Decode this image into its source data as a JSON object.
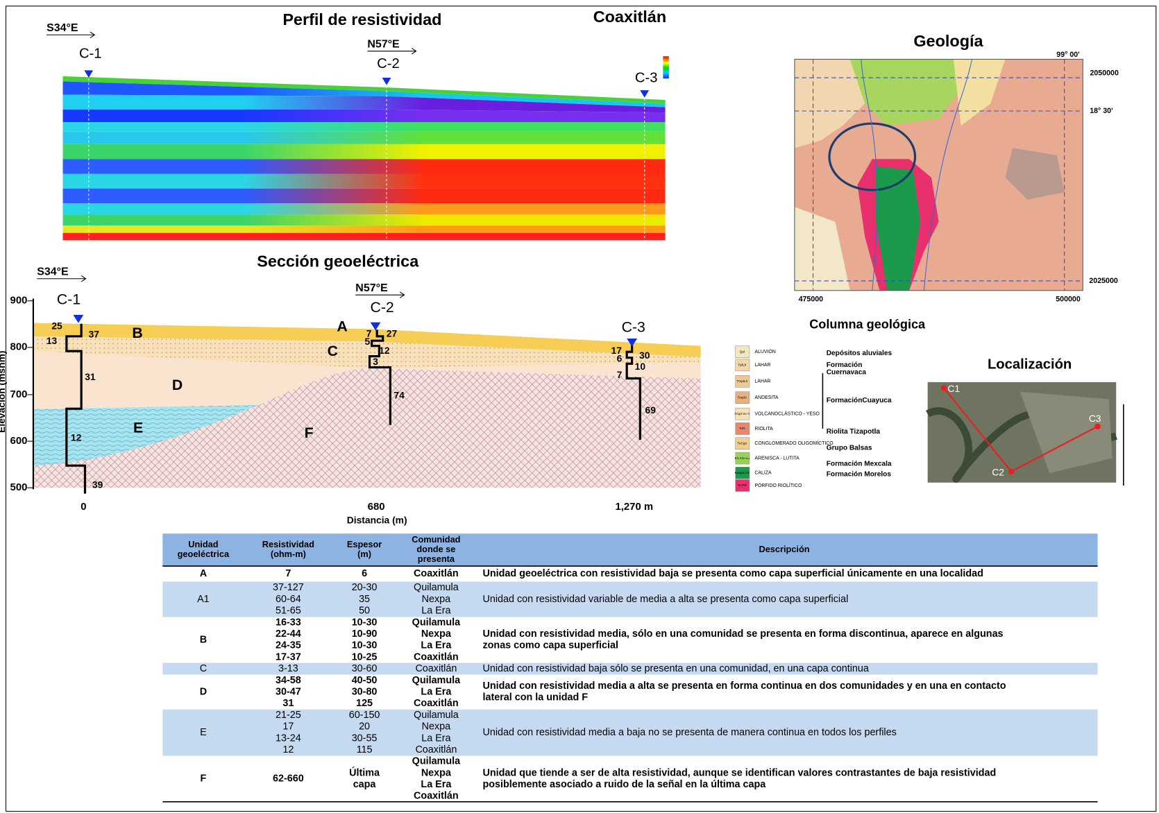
{
  "profile": {
    "title": "Perfil de resistividad",
    "place": "Coaxitlán",
    "dir1": "S34°E",
    "dir2": "N57°E",
    "stations": [
      "C-1",
      "C-2",
      "C-3"
    ]
  },
  "section": {
    "title": "Sección geoeléctrica",
    "dir1": "S34°E",
    "dir2": "N57°E",
    "stations": [
      "C-1",
      "C-2",
      "C-3"
    ],
    "y_label": "Elevación (msnm)",
    "yticks": [
      "900",
      "800",
      "700",
      "600",
      "500"
    ],
    "xticks": [
      "0",
      "680",
      "1,270 m"
    ],
    "x_label": "Distancia (m)",
    "units": [
      "A",
      "B",
      "C",
      "D",
      "E",
      "F"
    ],
    "labels": [
      "25",
      "37",
      "13",
      "31",
      "12",
      "39",
      "7",
      "27",
      "5",
      "12",
      "3",
      "74",
      "17",
      "30",
      "6",
      "10",
      "7",
      "69"
    ]
  },
  "geology": {
    "title": "Geología",
    "coords": [
      "99° 00'",
      "2050000",
      "18° 30'",
      "2025000",
      "475000",
      "500000"
    ]
  },
  "column": {
    "title": "Columna geológica",
    "rows": [
      {
        "code": "Qal",
        "name": "ALUVIÓN"
      },
      {
        "code": "TplLh",
        "name": "LAHAR"
      },
      {
        "code": "TmplLh",
        "name": "LAHAR"
      },
      {
        "code": "TmplA",
        "name": "ANDESITA"
      },
      {
        "code": "Tmpl Vc-Y",
        "name": "VOLCANOCLÁSTICO - YESO"
      },
      {
        "code": "ToR",
        "name": "RIOLITA"
      },
      {
        "code": "ToCgo",
        "name": "CONGLOMERADO OLIGOMÍCTICO"
      },
      {
        "code": "Ks Are-Lu",
        "name": "ARENISCA - LUTITA"
      },
      {
        "code": "Kaapa Cz",
        "name": "CALIZA"
      },
      {
        "code": "To PR",
        "name": "PÓRFIDO RIOLÍTICO"
      }
    ],
    "groups": [
      [
        "Depósitos aluviales"
      ],
      [
        "Formación",
        "Cuernavaca"
      ],
      [
        "FormaciónCuayuca"
      ],
      [
        "Riolita Tizapotla"
      ],
      [
        "Grupo Balsas"
      ],
      [
        "Formación Mexcala"
      ],
      [
        "Formación Morelos"
      ]
    ]
  },
  "location": {
    "title": "Localización",
    "points": [
      "C1",
      "C2",
      "C3"
    ]
  },
  "table": {
    "header": [
      [
        "Unidad",
        "geoeléctrica"
      ],
      [
        "Resistividad",
        "(ohm-m)"
      ],
      [
        "Espesor",
        "(m)"
      ],
      [
        "Comunidad",
        "donde se",
        "presenta"
      ],
      [
        "Descripción"
      ]
    ],
    "rows": [
      [
        [
          "A"
        ],
        [
          "7"
        ],
        [
          "6"
        ],
        [
          "Coaxitlán"
        ],
        [
          "Unidad geoeléctrica con resistividad baja se presenta como capa superficial únicamente en una localidad"
        ]
      ],
      [
        [
          "A1"
        ],
        [
          "37-127",
          "60-64",
          "51-65"
        ],
        [
          "20-30",
          "35",
          "50"
        ],
        [
          "Quilamula",
          "Nexpa",
          "La Era"
        ],
        [
          "Unidad con resistividad variable de media a alta se presenta como capa superficial"
        ]
      ],
      [
        [
          "B"
        ],
        [
          "16-33",
          "22-44",
          "24-35",
          "17-37"
        ],
        [
          "10-30",
          "10-90",
          "10-30",
          "10-25"
        ],
        [
          "Quilamula",
          "Nexpa",
          "La Era",
          "Coaxitlán"
        ],
        [
          "Unidad con resistividad media, sólo en una comunidad se presenta en forma discontinua, aparece en algunas",
          "zonas como capa superficial"
        ]
      ],
      [
        [
          "C"
        ],
        [
          "3-13"
        ],
        [
          "30-60"
        ],
        [
          "Coaxitlán"
        ],
        [
          "Unidad con resistividad baja sólo se presenta en una comunidad, en una capa continua"
        ]
      ],
      [
        [
          "D"
        ],
        [
          "34-58",
          "30-47",
          "31"
        ],
        [
          "40-50",
          "30-80",
          "125"
        ],
        [
          "Quilamula",
          "La Era",
          "Coaxitlán"
        ],
        [
          "Unidad con resistividad media a alta se presenta en forma continua en dos comunidades y en una en contacto",
          "lateral con la unidad F"
        ]
      ],
      [
        [
          "E"
        ],
        [
          "21-25",
          "17",
          "13-24",
          "12"
        ],
        [
          "60-150",
          "20",
          "30-55",
          "115"
        ],
        [
          "Quilamula",
          "Nexpa",
          "La Era",
          "Coaxitlán"
        ],
        [
          "Unidad con resistividad media a baja  no se presenta de manera continua en todos los perfiles"
        ]
      ],
      [
        [
          "F"
        ],
        [
          "62-660"
        ],
        [
          "Última",
          "capa"
        ],
        [
          "Quilamula",
          "Nexpa",
          "La Era",
          "Coaxitlán"
        ],
        [
          "Unidad que tiende a ser de alta resistividad, aunque se identifican valores contrastantes de baja resistividad",
          "posiblemente asociado a ruido de la señal en la última capa"
        ]
      ]
    ]
  }
}
